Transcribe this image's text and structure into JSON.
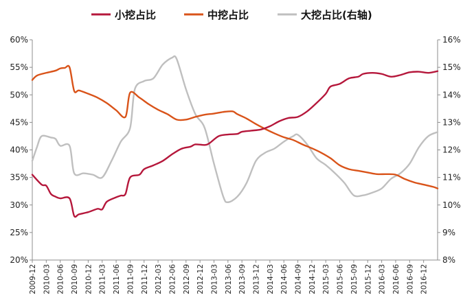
{
  "chart_data": {
    "type": "line",
    "title": "",
    "grid": false,
    "legend_position": "top",
    "x_tick_labels": [
      "2009-12",
      "2010-03",
      "2010-06",
      "2010-09",
      "2010-12",
      "2011-03",
      "2011-06",
      "2011-09",
      "2011-12",
      "2012-03",
      "2012-06",
      "2012-09",
      "2012-12",
      "2013-03",
      "2013-06",
      "2013-09",
      "2013-12",
      "2014-03",
      "2014-06",
      "2014-09",
      "2014-12",
      "2015-03",
      "2015-06",
      "2015-09",
      "2015-12",
      "2016-03",
      "2016-06",
      "2016-09",
      "2016-12"
    ],
    "y_left": {
      "ticks": [
        "20%",
        "25%",
        "30%",
        "35%",
        "40%",
        "45%",
        "50%",
        "55%",
        "60%"
      ],
      "range": [
        20,
        60
      ]
    },
    "y_right": {
      "ticks": [
        "8%",
        "9%",
        "10%",
        "11%",
        "12%",
        "13%",
        "14%",
        "15%",
        "16%"
      ],
      "range": [
        8,
        16
      ]
    },
    "series": [
      {
        "name": "小挖占比",
        "axis": "left",
        "color": "#b5173b",
        "points": [
          [
            "2009-12",
            35.5
          ],
          [
            "2010-02",
            33.7
          ],
          [
            "2010-03",
            33.5
          ],
          [
            "2010-04",
            32.0
          ],
          [
            "2010-05",
            31.5
          ],
          [
            "2010-06",
            31.2
          ],
          [
            "2010-08",
            31.2
          ],
          [
            "2010-09",
            28.0
          ],
          [
            "2010-10",
            28.3
          ],
          [
            "2010-12",
            28.7
          ],
          [
            "2011-02",
            29.3
          ],
          [
            "2011-03",
            29.2
          ],
          [
            "2011-04",
            30.6
          ],
          [
            "2011-06",
            31.4
          ],
          [
            "2011-07",
            31.7
          ],
          [
            "2011-08",
            32.0
          ],
          [
            "2011-09",
            35.0
          ],
          [
            "2011-11",
            35.5
          ],
          [
            "2011-12",
            36.5
          ],
          [
            "2012-02",
            37.2
          ],
          [
            "2012-04",
            38.0
          ],
          [
            "2012-06",
            39.2
          ],
          [
            "2012-08",
            40.2
          ],
          [
            "2012-10",
            40.6
          ],
          [
            "2012-11",
            41.0
          ],
          [
            "2013-01",
            40.9
          ],
          [
            "2013-02",
            41.2
          ],
          [
            "2013-04",
            42.5
          ],
          [
            "2013-06",
            42.8
          ],
          [
            "2013-08",
            42.9
          ],
          [
            "2013-09",
            43.3
          ],
          [
            "2013-11",
            43.5
          ],
          [
            "2014-01",
            43.7
          ],
          [
            "2014-03",
            44.3
          ],
          [
            "2014-05",
            45.2
          ],
          [
            "2014-07",
            45.8
          ],
          [
            "2014-09",
            46.0
          ],
          [
            "2014-11",
            47.0
          ],
          [
            "2015-01",
            48.5
          ],
          [
            "2015-03",
            50.2
          ],
          [
            "2015-04",
            51.5
          ],
          [
            "2015-06",
            52.0
          ],
          [
            "2015-08",
            53.0
          ],
          [
            "2015-10",
            53.3
          ],
          [
            "2015-11",
            53.8
          ],
          [
            "2016-01",
            54.0
          ],
          [
            "2016-03",
            53.8
          ],
          [
            "2016-05",
            53.3
          ],
          [
            "2016-07",
            53.6
          ],
          [
            "2016-09",
            54.1
          ],
          [
            "2016-11",
            54.2
          ],
          [
            "2017-01",
            54.0
          ],
          [
            "2017-03",
            54.3
          ]
        ]
      },
      {
        "name": "中挖占比",
        "axis": "left",
        "color": "#d95319",
        "points": [
          [
            "2009-12",
            52.7
          ],
          [
            "2010-01",
            53.5
          ],
          [
            "2010-03",
            54.0
          ],
          [
            "2010-05",
            54.4
          ],
          [
            "2010-06",
            54.8
          ],
          [
            "2010-07",
            54.9
          ],
          [
            "2010-08",
            55.0
          ],
          [
            "2010-09",
            50.7
          ],
          [
            "2010-10",
            50.8
          ],
          [
            "2010-12",
            50.2
          ],
          [
            "2011-02",
            49.5
          ],
          [
            "2011-04",
            48.5
          ],
          [
            "2011-06",
            47.2
          ],
          [
            "2011-08",
            46.0
          ],
          [
            "2011-09",
            50.4
          ],
          [
            "2011-11",
            49.5
          ],
          [
            "2012-01",
            48.3
          ],
          [
            "2012-03",
            47.3
          ],
          [
            "2012-05",
            46.5
          ],
          [
            "2012-07",
            45.5
          ],
          [
            "2012-09",
            45.5
          ],
          [
            "2012-11",
            46.0
          ],
          [
            "2013-01",
            46.4
          ],
          [
            "2013-03",
            46.6
          ],
          [
            "2013-05",
            46.9
          ],
          [
            "2013-07",
            47.0
          ],
          [
            "2013-08",
            46.5
          ],
          [
            "2013-10",
            45.7
          ],
          [
            "2013-12",
            44.7
          ],
          [
            "2014-02",
            43.8
          ],
          [
            "2014-04",
            43.0
          ],
          [
            "2014-06",
            42.3
          ],
          [
            "2014-08",
            41.8
          ],
          [
            "2014-10",
            41.0
          ],
          [
            "2014-12",
            40.3
          ],
          [
            "2015-02",
            39.5
          ],
          [
            "2015-04",
            38.5
          ],
          [
            "2015-06",
            37.2
          ],
          [
            "2015-08",
            36.5
          ],
          [
            "2015-10",
            36.2
          ],
          [
            "2015-12",
            35.9
          ],
          [
            "2016-02",
            35.6
          ],
          [
            "2016-04",
            35.6
          ],
          [
            "2016-06",
            35.5
          ],
          [
            "2016-08",
            34.7
          ],
          [
            "2016-10",
            34.1
          ],
          [
            "2016-12",
            33.7
          ],
          [
            "2017-02",
            33.3
          ],
          [
            "2017-03",
            33.0
          ]
        ]
      },
      {
        "name": "大挖占比(右轴)",
        "axis": "right",
        "color": "#bfbfbf",
        "points": [
          [
            "2009-12",
            11.6
          ],
          [
            "2010-01",
            12.1
          ],
          [
            "2010-02",
            12.5
          ],
          [
            "2010-04",
            12.45
          ],
          [
            "2010-05",
            12.4
          ],
          [
            "2010-06",
            12.15
          ],
          [
            "2010-08",
            12.15
          ],
          [
            "2010-09",
            11.15
          ],
          [
            "2010-11",
            11.15
          ],
          [
            "2011-01",
            11.1
          ],
          [
            "2011-03",
            11.0
          ],
          [
            "2011-05",
            11.6
          ],
          [
            "2011-07",
            12.3
          ],
          [
            "2011-09",
            12.8
          ],
          [
            "2011-10",
            14.2
          ],
          [
            "2011-12",
            14.5
          ],
          [
            "2012-02",
            14.6
          ],
          [
            "2012-04",
            15.1
          ],
          [
            "2012-06",
            15.35
          ],
          [
            "2012-07",
            15.3
          ],
          [
            "2012-09",
            14.2
          ],
          [
            "2012-11",
            13.3
          ],
          [
            "2013-01",
            12.8
          ],
          [
            "2013-03",
            11.5
          ],
          [
            "2013-05",
            10.3
          ],
          [
            "2013-06",
            10.1
          ],
          [
            "2013-08",
            10.3
          ],
          [
            "2013-10",
            10.8
          ],
          [
            "2013-12",
            11.6
          ],
          [
            "2014-02",
            11.9
          ],
          [
            "2014-04",
            12.05
          ],
          [
            "2014-06",
            12.3
          ],
          [
            "2014-08",
            12.5
          ],
          [
            "2014-09",
            12.55
          ],
          [
            "2014-11",
            12.2
          ],
          [
            "2015-01",
            11.7
          ],
          [
            "2015-03",
            11.45
          ],
          [
            "2015-05",
            11.15
          ],
          [
            "2015-07",
            10.8
          ],
          [
            "2015-09",
            10.35
          ],
          [
            "2015-11",
            10.35
          ],
          [
            "2016-01",
            10.45
          ],
          [
            "2016-03",
            10.6
          ],
          [
            "2016-05",
            10.95
          ],
          [
            "2016-07",
            11.15
          ],
          [
            "2016-09",
            11.5
          ],
          [
            "2016-11",
            12.1
          ],
          [
            "2017-01",
            12.5
          ],
          [
            "2017-03",
            12.65
          ]
        ]
      }
    ]
  }
}
